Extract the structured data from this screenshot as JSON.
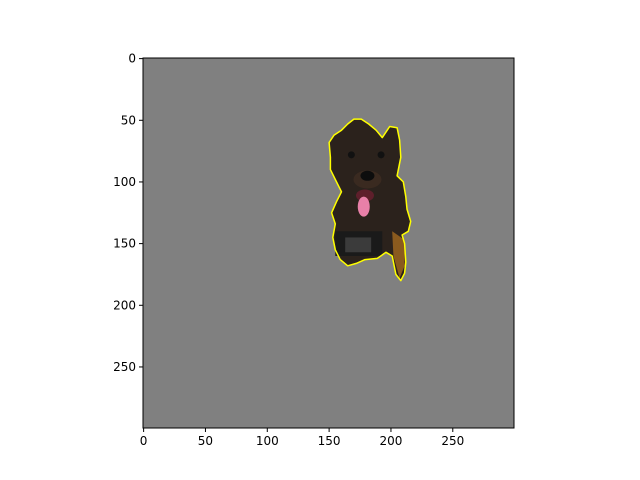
{
  "chart_data": {
    "type": "image",
    "title": "",
    "xlabel": "",
    "ylabel": "",
    "xlim": [
      -0.5,
      299.5
    ],
    "ylim": [
      299.5,
      -0.5
    ],
    "y_inverted": true,
    "x_ticks": [
      0,
      50,
      100,
      150,
      200,
      250
    ],
    "y_ticks": [
      0,
      50,
      100,
      150,
      200,
      250
    ],
    "x_tick_labels": [
      "0",
      "50",
      "100",
      "150",
      "200",
      "250"
    ],
    "y_tick_labels": [
      "0",
      "50",
      "100",
      "150",
      "200",
      "250"
    ],
    "background_color": "#808080",
    "contour_color": "#ffff00",
    "contour": [
      [
        150,
        68
      ],
      [
        154,
        62
      ],
      [
        160,
        58
      ],
      [
        165,
        53
      ],
      [
        170,
        49
      ],
      [
        176,
        49
      ],
      [
        182,
        53
      ],
      [
        188,
        58
      ],
      [
        193,
        64
      ],
      [
        199,
        55
      ],
      [
        205,
        56
      ],
      [
        207,
        66
      ],
      [
        208,
        80
      ],
      [
        205,
        95
      ],
      [
        210,
        100
      ],
      [
        212,
        112
      ],
      [
        213,
        122
      ],
      [
        216,
        132
      ],
      [
        214,
        140
      ],
      [
        209,
        143
      ],
      [
        211,
        150
      ],
      [
        212,
        165
      ],
      [
        211,
        174
      ],
      [
        208,
        180
      ],
      [
        204,
        175
      ],
      [
        201,
        160
      ],
      [
        196,
        157
      ],
      [
        189,
        162
      ],
      [
        179,
        163
      ],
      [
        172,
        166
      ],
      [
        165,
        168
      ],
      [
        159,
        163
      ],
      [
        155,
        155
      ],
      [
        153,
        145
      ],
      [
        155,
        134
      ],
      [
        152,
        125
      ],
      [
        156,
        116
      ],
      [
        160,
        108
      ],
      [
        156,
        100
      ],
      [
        151,
        90
      ],
      [
        151,
        80
      ]
    ]
  }
}
